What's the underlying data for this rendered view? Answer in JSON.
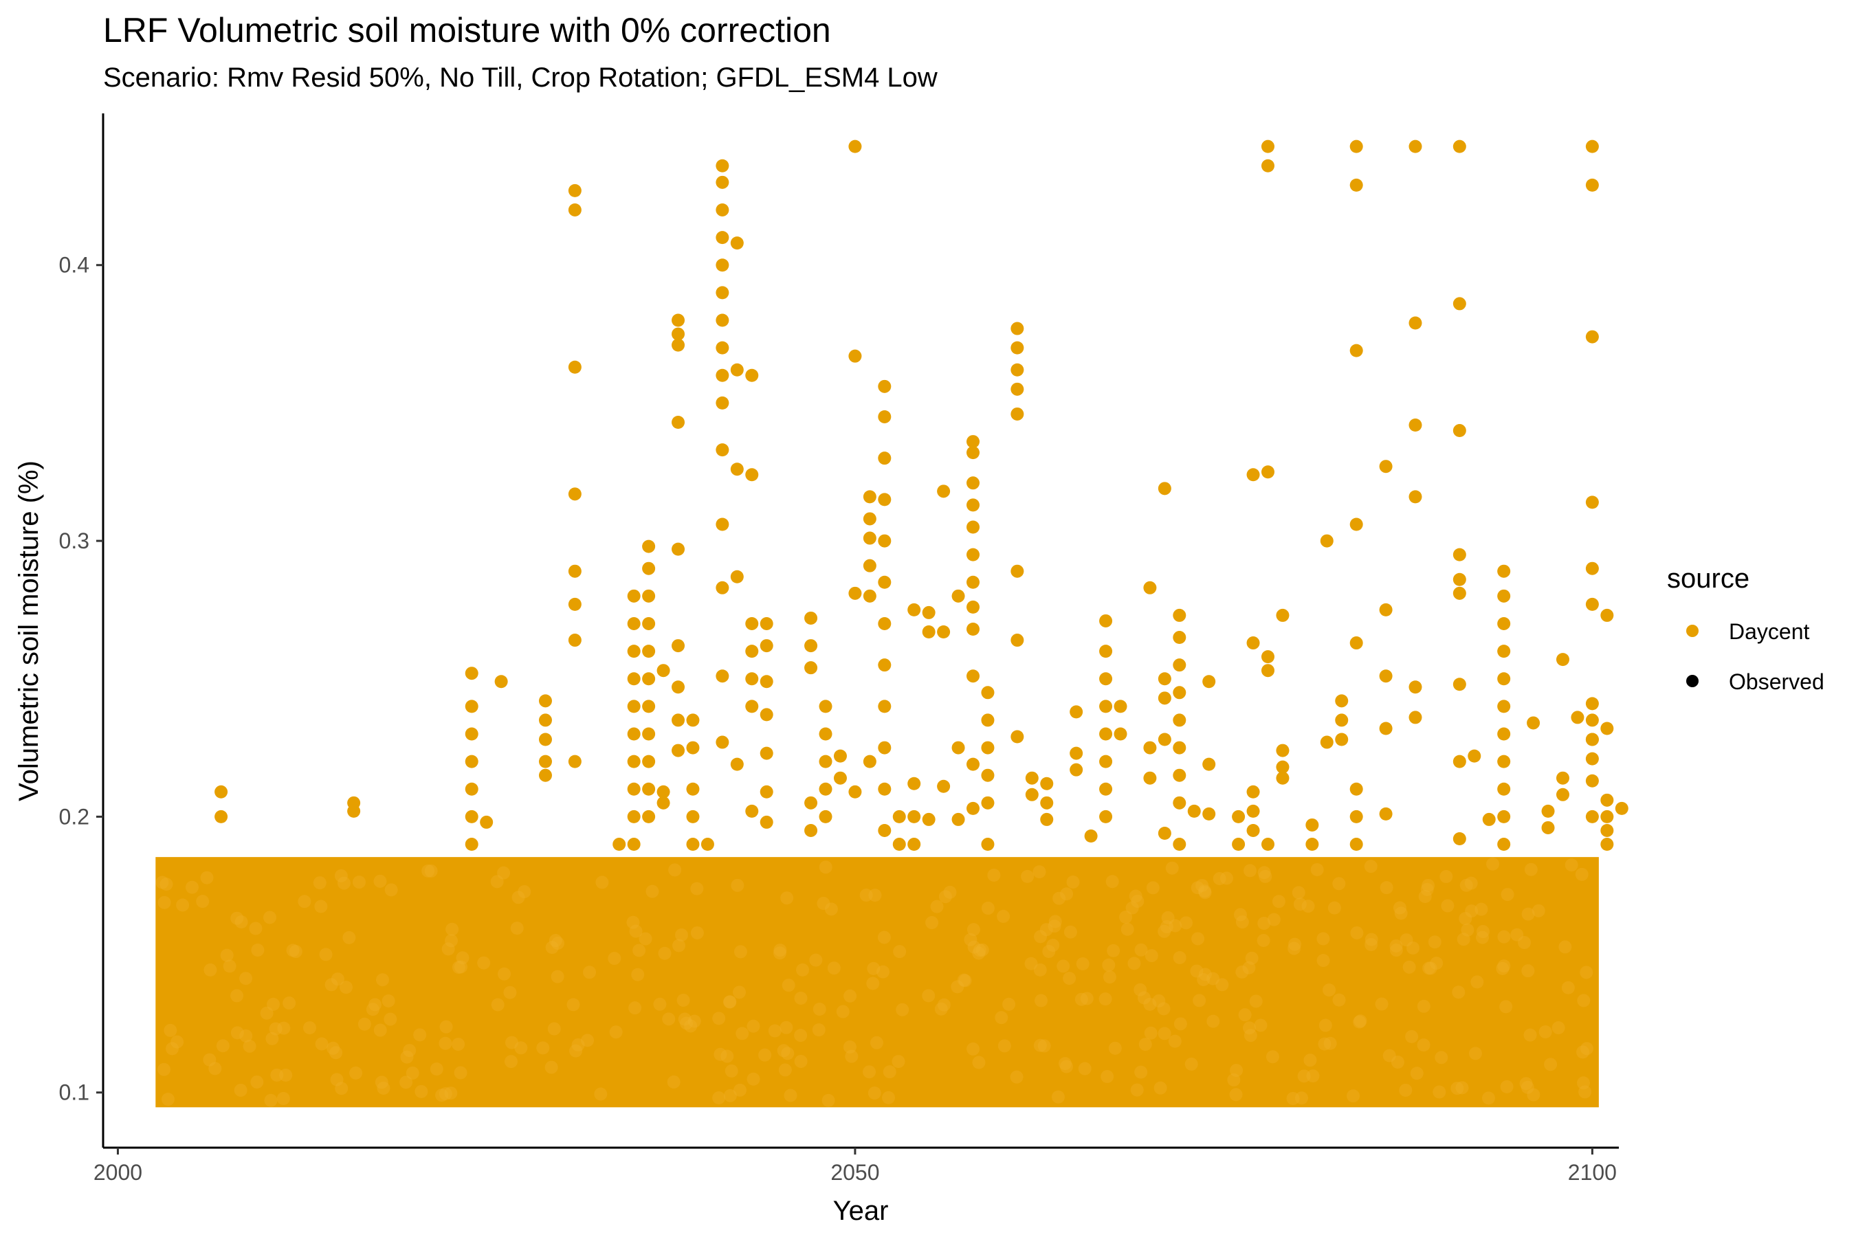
{
  "chart_data": {
    "type": "scatter",
    "title": "LRF Volumetric soil moisture with 0% correction",
    "subtitle": "Scenario: Rmv Resid 50%, No Till, Crop Rotation; GFDL_ESM4 Low",
    "xlabel": "Year",
    "ylabel": "Volumetric soil moisture (%)",
    "xlim": [
      1999,
      2102.5
    ],
    "ylim": [
      0.08,
      0.455
    ],
    "xticks": [
      2000,
      2050,
      2100
    ],
    "xtick_labels": [
      "2000",
      "2050",
      "2100"
    ],
    "yticks": [
      0.1,
      0.2,
      0.3,
      0.4
    ],
    "ytick_labels": [
      "0.1",
      "0.2",
      "0.3",
      "0.4"
    ],
    "grid": false,
    "legend": {
      "title": "source",
      "position": "right",
      "entries": [
        {
          "label": "Daycent",
          "color": "#E69F00"
        },
        {
          "label": "Observed",
          "color": "#000000"
        }
      ]
    },
    "series": [
      {
        "name": "Daycent",
        "color": "#E69F00",
        "dense_band": {
          "x_range": [
            2003,
            2100
          ],
          "y_range": [
            0.097,
            0.183
          ]
        },
        "points": [
          [
            2007,
            0.209
          ],
          [
            2007,
            0.2
          ],
          [
            2016,
            0.205
          ],
          [
            2016,
            0.202
          ],
          [
            2024,
            0.252
          ],
          [
            2024,
            0.24
          ],
          [
            2024,
            0.23
          ],
          [
            2024,
            0.22
          ],
          [
            2024,
            0.21
          ],
          [
            2024,
            0.2
          ],
          [
            2024,
            0.19
          ],
          [
            2026,
            0.249
          ],
          [
            2025,
            0.198
          ],
          [
            2029,
            0.242
          ],
          [
            2029,
            0.235
          ],
          [
            2029,
            0.228
          ],
          [
            2029,
            0.22
          ],
          [
            2029,
            0.215
          ],
          [
            2031,
            0.427
          ],
          [
            2031,
            0.42
          ],
          [
            2031,
            0.363
          ],
          [
            2031,
            0.317
          ],
          [
            2031,
            0.289
          ],
          [
            2031,
            0.277
          ],
          [
            2031,
            0.264
          ],
          [
            2031,
            0.22
          ],
          [
            2034,
            0.19
          ],
          [
            2035,
            0.28
          ],
          [
            2035,
            0.27
          ],
          [
            2035,
            0.26
          ],
          [
            2035,
            0.25
          ],
          [
            2035,
            0.24
          ],
          [
            2035,
            0.23
          ],
          [
            2035,
            0.22
          ],
          [
            2035,
            0.21
          ],
          [
            2035,
            0.2
          ],
          [
            2035,
            0.19
          ],
          [
            2036,
            0.298
          ],
          [
            2036,
            0.29
          ],
          [
            2036,
            0.28
          ],
          [
            2036,
            0.27
          ],
          [
            2036,
            0.26
          ],
          [
            2036,
            0.25
          ],
          [
            2036,
            0.24
          ],
          [
            2036,
            0.23
          ],
          [
            2036,
            0.22
          ],
          [
            2036,
            0.21
          ],
          [
            2036,
            0.2
          ],
          [
            2037,
            0.253
          ],
          [
            2037,
            0.209
          ],
          [
            2037,
            0.205
          ],
          [
            2038,
            0.38
          ],
          [
            2038,
            0.375
          ],
          [
            2038,
            0.371
          ],
          [
            2038,
            0.343
          ],
          [
            2038,
            0.297
          ],
          [
            2038,
            0.262
          ],
          [
            2038,
            0.247
          ],
          [
            2038,
            0.235
          ],
          [
            2038,
            0.224
          ],
          [
            2039,
            0.235
          ],
          [
            2039,
            0.225
          ],
          [
            2039,
            0.21
          ],
          [
            2039,
            0.2
          ],
          [
            2039,
            0.19
          ],
          [
            2040,
            0.19
          ],
          [
            2041,
            0.436
          ],
          [
            2041,
            0.43
          ],
          [
            2041,
            0.42
          ],
          [
            2041,
            0.41
          ],
          [
            2041,
            0.4
          ],
          [
            2041,
            0.39
          ],
          [
            2041,
            0.38
          ],
          [
            2041,
            0.37
          ],
          [
            2041,
            0.36
          ],
          [
            2041,
            0.35
          ],
          [
            2041,
            0.333
          ],
          [
            2041,
            0.306
          ],
          [
            2041,
            0.283
          ],
          [
            2041,
            0.251
          ],
          [
            2041,
            0.227
          ],
          [
            2042,
            0.408
          ],
          [
            2042,
            0.362
          ],
          [
            2042,
            0.326
          ],
          [
            2042,
            0.287
          ],
          [
            2042,
            0.219
          ],
          [
            2043,
            0.36
          ],
          [
            2043,
            0.324
          ],
          [
            2043,
            0.27
          ],
          [
            2043,
            0.26
          ],
          [
            2043,
            0.25
          ],
          [
            2043,
            0.24
          ],
          [
            2043,
            0.202
          ],
          [
            2044,
            0.27
          ],
          [
            2044,
            0.262
          ],
          [
            2044,
            0.249
          ],
          [
            2044,
            0.237
          ],
          [
            2044,
            0.223
          ],
          [
            2044,
            0.209
          ],
          [
            2044,
            0.198
          ],
          [
            2047,
            0.272
          ],
          [
            2047,
            0.262
          ],
          [
            2047,
            0.254
          ],
          [
            2047,
            0.205
          ],
          [
            2047,
            0.195
          ],
          [
            2048,
            0.24
          ],
          [
            2048,
            0.23
          ],
          [
            2048,
            0.22
          ],
          [
            2048,
            0.21
          ],
          [
            2048,
            0.2
          ],
          [
            2049,
            0.222
          ],
          [
            2049,
            0.214
          ],
          [
            2050,
            0.443
          ],
          [
            2050,
            0.367
          ],
          [
            2050,
            0.281
          ],
          [
            2050,
            0.209
          ],
          [
            2051,
            0.316
          ],
          [
            2051,
            0.308
          ],
          [
            2051,
            0.301
          ],
          [
            2051,
            0.291
          ],
          [
            2051,
            0.28
          ],
          [
            2051,
            0.22
          ],
          [
            2052,
            0.356
          ],
          [
            2052,
            0.345
          ],
          [
            2052,
            0.33
          ],
          [
            2052,
            0.315
          ],
          [
            2052,
            0.3
          ],
          [
            2052,
            0.285
          ],
          [
            2052,
            0.27
          ],
          [
            2052,
            0.255
          ],
          [
            2052,
            0.24
          ],
          [
            2052,
            0.225
          ],
          [
            2052,
            0.21
          ],
          [
            2052,
            0.195
          ],
          [
            2053,
            0.2
          ],
          [
            2053,
            0.19
          ],
          [
            2054,
            0.275
          ],
          [
            2054,
            0.212
          ],
          [
            2054,
            0.2
          ],
          [
            2054,
            0.19
          ],
          [
            2055,
            0.274
          ],
          [
            2055,
            0.267
          ],
          [
            2055,
            0.199
          ],
          [
            2056,
            0.318
          ],
          [
            2056,
            0.267
          ],
          [
            2056,
            0.211
          ],
          [
            2057,
            0.28
          ],
          [
            2057,
            0.225
          ],
          [
            2057,
            0.199
          ],
          [
            2058,
            0.336
          ],
          [
            2058,
            0.332
          ],
          [
            2058,
            0.321
          ],
          [
            2058,
            0.313
          ],
          [
            2058,
            0.305
          ],
          [
            2058,
            0.295
          ],
          [
            2058,
            0.285
          ],
          [
            2058,
            0.276
          ],
          [
            2058,
            0.268
          ],
          [
            2058,
            0.251
          ],
          [
            2058,
            0.219
          ],
          [
            2058,
            0.203
          ],
          [
            2059,
            0.245
          ],
          [
            2059,
            0.235
          ],
          [
            2059,
            0.225
          ],
          [
            2059,
            0.215
          ],
          [
            2059,
            0.205
          ],
          [
            2059,
            0.19
          ],
          [
            2061,
            0.377
          ],
          [
            2061,
            0.37
          ],
          [
            2061,
            0.362
          ],
          [
            2061,
            0.355
          ],
          [
            2061,
            0.346
          ],
          [
            2061,
            0.289
          ],
          [
            2061,
            0.264
          ],
          [
            2061,
            0.229
          ],
          [
            2062,
            0.214
          ],
          [
            2062,
            0.208
          ],
          [
            2063,
            0.212
          ],
          [
            2063,
            0.205
          ],
          [
            2063,
            0.199
          ],
          [
            2065,
            0.238
          ],
          [
            2065,
            0.223
          ],
          [
            2065,
            0.217
          ],
          [
            2066,
            0.193
          ],
          [
            2067,
            0.271
          ],
          [
            2067,
            0.26
          ],
          [
            2067,
            0.25
          ],
          [
            2067,
            0.24
          ],
          [
            2067,
            0.23
          ],
          [
            2067,
            0.22
          ],
          [
            2067,
            0.21
          ],
          [
            2067,
            0.2
          ],
          [
            2068,
            0.24
          ],
          [
            2068,
            0.23
          ],
          [
            2070,
            0.283
          ],
          [
            2070,
            0.225
          ],
          [
            2070,
            0.214
          ],
          [
            2071,
            0.319
          ],
          [
            2071,
            0.25
          ],
          [
            2071,
            0.243
          ],
          [
            2071,
            0.228
          ],
          [
            2071,
            0.194
          ],
          [
            2072,
            0.273
          ],
          [
            2072,
            0.265
          ],
          [
            2072,
            0.255
          ],
          [
            2072,
            0.245
          ],
          [
            2072,
            0.235
          ],
          [
            2072,
            0.225
          ],
          [
            2072,
            0.215
          ],
          [
            2072,
            0.205
          ],
          [
            2072,
            0.19
          ],
          [
            2073,
            0.202
          ],
          [
            2074,
            0.249
          ],
          [
            2074,
            0.219
          ],
          [
            2074,
            0.201
          ],
          [
            2076,
            0.2
          ],
          [
            2076,
            0.19
          ],
          [
            2077,
            0.324
          ],
          [
            2077,
            0.263
          ],
          [
            2077,
            0.209
          ],
          [
            2077,
            0.202
          ],
          [
            2077,
            0.195
          ],
          [
            2078,
            0.443
          ],
          [
            2078,
            0.436
          ],
          [
            2078,
            0.325
          ],
          [
            2078,
            0.258
          ],
          [
            2078,
            0.253
          ],
          [
            2078,
            0.19
          ],
          [
            2079,
            0.273
          ],
          [
            2079,
            0.224
          ],
          [
            2079,
            0.218
          ],
          [
            2079,
            0.214
          ],
          [
            2081,
            0.197
          ],
          [
            2081,
            0.19
          ],
          [
            2082,
            0.3
          ],
          [
            2082,
            0.227
          ],
          [
            2083,
            0.242
          ],
          [
            2083,
            0.235
          ],
          [
            2083,
            0.228
          ],
          [
            2084,
            0.443
          ],
          [
            2084,
            0.429
          ],
          [
            2084,
            0.369
          ],
          [
            2084,
            0.306
          ],
          [
            2084,
            0.263
          ],
          [
            2084,
            0.21
          ],
          [
            2084,
            0.2
          ],
          [
            2084,
            0.19
          ],
          [
            2086,
            0.327
          ],
          [
            2086,
            0.275
          ],
          [
            2086,
            0.251
          ],
          [
            2086,
            0.232
          ],
          [
            2086,
            0.201
          ],
          [
            2088,
            0.443
          ],
          [
            2088,
            0.379
          ],
          [
            2088,
            0.342
          ],
          [
            2088,
            0.316
          ],
          [
            2088,
            0.247
          ],
          [
            2088,
            0.236
          ],
          [
            2091,
            0.443
          ],
          [
            2091,
            0.386
          ],
          [
            2091,
            0.34
          ],
          [
            2091,
            0.295
          ],
          [
            2091,
            0.286
          ],
          [
            2091,
            0.281
          ],
          [
            2091,
            0.248
          ],
          [
            2091,
            0.22
          ],
          [
            2091,
            0.192
          ],
          [
            2092,
            0.222
          ],
          [
            2093,
            0.199
          ],
          [
            2094,
            0.289
          ],
          [
            2094,
            0.28
          ],
          [
            2094,
            0.27
          ],
          [
            2094,
            0.26
          ],
          [
            2094,
            0.25
          ],
          [
            2094,
            0.24
          ],
          [
            2094,
            0.23
          ],
          [
            2094,
            0.22
          ],
          [
            2094,
            0.21
          ],
          [
            2094,
            0.2
          ],
          [
            2094,
            0.19
          ],
          [
            2096,
            0.234
          ],
          [
            2097,
            0.202
          ],
          [
            2097,
            0.196
          ],
          [
            2098,
            0.257
          ],
          [
            2098,
            0.214
          ],
          [
            2098,
            0.208
          ],
          [
            2099,
            0.236
          ],
          [
            2100,
            0.29
          ],
          [
            2100,
            0.241
          ],
          [
            2100,
            0.235
          ],
          [
            2100,
            0.228
          ],
          [
            2100,
            0.221
          ],
          [
            2100,
            0.213
          ],
          [
            2101,
            0.273
          ],
          [
            2101,
            0.232
          ],
          [
            2101,
            0.206
          ],
          [
            2101,
            0.2
          ],
          [
            2101,
            0.195
          ],
          [
            2101,
            0.19
          ],
          [
            2102,
            0.203
          ],
          [
            2100,
            0.443
          ],
          [
            2100,
            0.429
          ],
          [
            2100,
            0.374
          ],
          [
            2100,
            0.314
          ],
          [
            2100,
            0.277
          ],
          [
            2100,
            0.228
          ],
          [
            2100,
            0.2
          ]
        ]
      },
      {
        "name": "Observed",
        "color": "#000000",
        "points": []
      }
    ]
  }
}
